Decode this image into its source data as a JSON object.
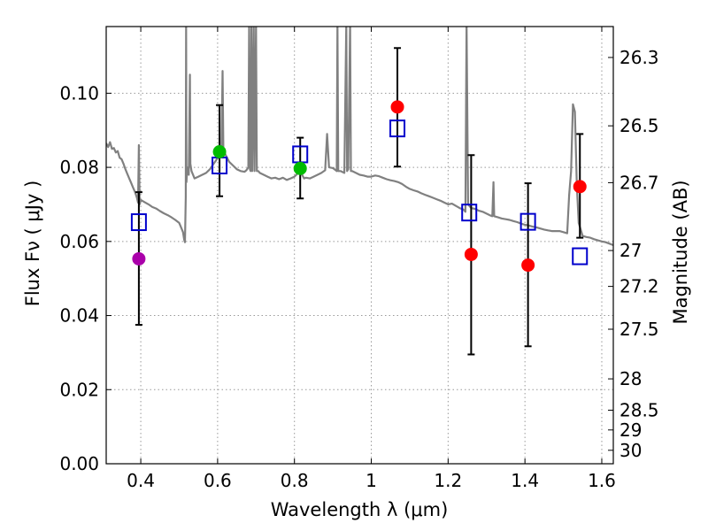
{
  "chart_data": {
    "type": "scatter",
    "xlabel": "Wavelength  λ (μm)",
    "ylabel": "Flux  Fν  ( μJy )",
    "y2label": "Magnitude (AB)",
    "xlim": [
      0.31,
      1.63
    ],
    "ylim": [
      0.0,
      0.118
    ],
    "grid": true,
    "x_ticks": [
      {
        "value": 0.4,
        "label": "0.4"
      },
      {
        "value": 0.6,
        "label": "0.6"
      },
      {
        "value": 0.8,
        "label": "0.8"
      },
      {
        "value": 1.0,
        "label": "1"
      },
      {
        "value": 1.2,
        "label": "1.2"
      },
      {
        "value": 1.4,
        "label": "1.4"
      },
      {
        "value": 1.6,
        "label": "1.6"
      }
    ],
    "y_ticks": [
      {
        "value": 0.0,
        "label": "0.00"
      },
      {
        "value": 0.02,
        "label": "0.02"
      },
      {
        "value": 0.04,
        "label": "0.04"
      },
      {
        "value": 0.06,
        "label": "0.06"
      },
      {
        "value": 0.08,
        "label": "0.08"
      },
      {
        "value": 0.1,
        "label": "0.10"
      }
    ],
    "mag_ticks": [
      {
        "mag": 26.3,
        "label": "26.3"
      },
      {
        "mag": 26.5,
        "label": "26.5"
      },
      {
        "mag": 26.7,
        "label": "26.7"
      },
      {
        "mag": 27.0,
        "label": "27"
      },
      {
        "mag": 27.2,
        "label": "27.2"
      },
      {
        "mag": 27.5,
        "label": "27.5"
      },
      {
        "mag": 28.0,
        "label": "28"
      },
      {
        "mag": 28.5,
        "label": "28.5"
      },
      {
        "mag": 29.0,
        "label": "29"
      },
      {
        "mag": 30.0,
        "label": "30"
      }
    ],
    "observed": [
      {
        "x": 0.395,
        "y": 0.0553,
        "err_low": 0.0375,
        "err_high": 0.0733,
        "color": "#aa00aa"
      },
      {
        "x": 0.605,
        "y": 0.0842,
        "err_low": 0.0722,
        "err_high": 0.0968,
        "color": "#00bb00"
      },
      {
        "x": 0.815,
        "y": 0.0797,
        "err_low": 0.0716,
        "err_high": 0.088,
        "color": "#00bb00"
      },
      {
        "x": 1.068,
        "y": 0.0963,
        "err_low": 0.0802,
        "err_high": 0.1122,
        "color": "#ff0000"
      },
      {
        "x": 1.26,
        "y": 0.0565,
        "err_low": 0.0295,
        "err_high": 0.0833,
        "color": "#ff0000"
      },
      {
        "x": 1.408,
        "y": 0.0536,
        "err_low": 0.0317,
        "err_high": 0.0757,
        "color": "#ff0000"
      },
      {
        "x": 1.543,
        "y": 0.0748,
        "err_low": 0.061,
        "err_high": 0.089,
        "color": "#ff0000"
      }
    ],
    "model_points": [
      {
        "x": 0.395,
        "y": 0.0652
      },
      {
        "x": 0.605,
        "y": 0.0805
      },
      {
        "x": 0.815,
        "y": 0.0835
      },
      {
        "x": 1.068,
        "y": 0.0905
      },
      {
        "x": 1.255,
        "y": 0.0678
      },
      {
        "x": 1.408,
        "y": 0.0653
      },
      {
        "x": 1.543,
        "y": 0.056
      }
    ],
    "template_spectrum": [
      [
        0.31,
        0.0865
      ],
      [
        0.315,
        0.0855
      ],
      [
        0.32,
        0.0868
      ],
      [
        0.325,
        0.085
      ],
      [
        0.33,
        0.0852
      ],
      [
        0.335,
        0.084
      ],
      [
        0.34,
        0.0844
      ],
      [
        0.345,
        0.0826
      ],
      [
        0.35,
        0.0822
      ],
      [
        0.355,
        0.081
      ],
      [
        0.36,
        0.0795
      ],
      [
        0.365,
        0.0782
      ],
      [
        0.37,
        0.077
      ],
      [
        0.375,
        0.0758
      ],
      [
        0.38,
        0.0745
      ],
      [
        0.385,
        0.0733
      ],
      [
        0.39,
        0.0718
      ],
      [
        0.393,
        0.0705
      ],
      [
        0.395,
        0.086
      ],
      [
        0.397,
        0.07
      ],
      [
        0.4,
        0.0712
      ],
      [
        0.41,
        0.0706
      ],
      [
        0.42,
        0.07
      ],
      [
        0.43,
        0.0693
      ],
      [
        0.44,
        0.0689
      ],
      [
        0.45,
        0.0682
      ],
      [
        0.46,
        0.0676
      ],
      [
        0.47,
        0.0671
      ],
      [
        0.48,
        0.0665
      ],
      [
        0.49,
        0.0658
      ],
      [
        0.5,
        0.065
      ],
      [
        0.505,
        0.0638
      ],
      [
        0.51,
        0.0625
      ],
      [
        0.513,
        0.0605
      ],
      [
        0.515,
        0.0598
      ],
      [
        0.517,
        0.072
      ],
      [
        0.518,
        0.118
      ],
      [
        0.519,
        0.076
      ],
      [
        0.521,
        0.08
      ],
      [
        0.525,
        0.078
      ],
      [
        0.528,
        0.105
      ],
      [
        0.529,
        0.081
      ],
      [
        0.532,
        0.079
      ],
      [
        0.54,
        0.077
      ],
      [
        0.55,
        0.0775
      ],
      [
        0.56,
        0.078
      ],
      [
        0.57,
        0.0785
      ],
      [
        0.58,
        0.0795
      ],
      [
        0.59,
        0.081
      ],
      [
        0.6,
        0.0825
      ],
      [
        0.605,
        0.083
      ],
      [
        0.61,
        0.084
      ],
      [
        0.613,
        0.106
      ],
      [
        0.615,
        0.0845
      ],
      [
        0.62,
        0.0835
      ],
      [
        0.63,
        0.0815
      ],
      [
        0.64,
        0.0805
      ],
      [
        0.65,
        0.0795
      ],
      [
        0.66,
        0.079
      ],
      [
        0.67,
        0.0788
      ],
      [
        0.675,
        0.0792
      ],
      [
        0.68,
        0.08
      ],
      [
        0.682,
        0.118
      ],
      [
        0.684,
        0.0795
      ],
      [
        0.686,
        0.079
      ],
      [
        0.688,
        0.118
      ],
      [
        0.69,
        0.079
      ],
      [
        0.694,
        0.118
      ],
      [
        0.696,
        0.079
      ],
      [
        0.7,
        0.118
      ],
      [
        0.702,
        0.079
      ],
      [
        0.706,
        0.079
      ],
      [
        0.71,
        0.0785
      ],
      [
        0.72,
        0.078
      ],
      [
        0.73,
        0.0775
      ],
      [
        0.74,
        0.077
      ],
      [
        0.75,
        0.0772
      ],
      [
        0.76,
        0.0768
      ],
      [
        0.77,
        0.0772
      ],
      [
        0.78,
        0.0766
      ],
      [
        0.79,
        0.077
      ],
      [
        0.8,
        0.0775
      ],
      [
        0.81,
        0.0785
      ],
      [
        0.815,
        0.079
      ],
      [
        0.82,
        0.078
      ],
      [
        0.825,
        0.077
      ],
      [
        0.83,
        0.0772
      ],
      [
        0.84,
        0.077
      ],
      [
        0.85,
        0.0775
      ],
      [
        0.86,
        0.078
      ],
      [
        0.87,
        0.0785
      ],
      [
        0.88,
        0.0792
      ],
      [
        0.885,
        0.089
      ],
      [
        0.89,
        0.08
      ],
      [
        0.9,
        0.0798
      ],
      [
        0.91,
        0.079
      ],
      [
        0.912,
        0.119
      ],
      [
        0.914,
        0.079
      ],
      [
        0.92,
        0.079
      ],
      [
        0.93,
        0.0785
      ],
      [
        0.935,
        0.119
      ],
      [
        0.937,
        0.079
      ],
      [
        0.94,
        0.0795
      ],
      [
        0.945,
        0.119
      ],
      [
        0.947,
        0.079
      ],
      [
        0.95,
        0.079
      ],
      [
        0.96,
        0.0785
      ],
      [
        0.97,
        0.078
      ],
      [
        0.98,
        0.0778
      ],
      [
        0.99,
        0.0775
      ],
      [
        1.0,
        0.0775
      ],
      [
        1.01,
        0.0778
      ],
      [
        1.02,
        0.0776
      ],
      [
        1.03,
        0.0772
      ],
      [
        1.04,
        0.0768
      ],
      [
        1.05,
        0.0765
      ],
      [
        1.06,
        0.0763
      ],
      [
        1.07,
        0.076
      ],
      [
        1.08,
        0.0755
      ],
      [
        1.09,
        0.0748
      ],
      [
        1.1,
        0.0742
      ],
      [
        1.11,
        0.0738
      ],
      [
        1.12,
        0.0735
      ],
      [
        1.13,
        0.073
      ],
      [
        1.14,
        0.0726
      ],
      [
        1.15,
        0.0722
      ],
      [
        1.16,
        0.0718
      ],
      [
        1.17,
        0.0714
      ],
      [
        1.18,
        0.071
      ],
      [
        1.19,
        0.0705
      ],
      [
        1.2,
        0.07
      ],
      [
        1.21,
        0.0702
      ],
      [
        1.22,
        0.0696
      ],
      [
        1.23,
        0.069
      ],
      [
        1.24,
        0.0686
      ],
      [
        1.245,
        0.068
      ],
      [
        1.248,
        0.119
      ],
      [
        1.252,
        0.07
      ],
      [
        1.26,
        0.069
      ],
      [
        1.27,
        0.0688
      ],
      [
        1.28,
        0.0683
      ],
      [
        1.29,
        0.068
      ],
      [
        1.3,
        0.0675
      ],
      [
        1.31,
        0.067
      ],
      [
        1.315,
        0.0668
      ],
      [
        1.318,
        0.076
      ],
      [
        1.32,
        0.0668
      ],
      [
        1.33,
        0.0665
      ],
      [
        1.34,
        0.0662
      ],
      [
        1.35,
        0.066
      ],
      [
        1.36,
        0.0658
      ],
      [
        1.37,
        0.0655
      ],
      [
        1.38,
        0.0652
      ],
      [
        1.39,
        0.0648
      ],
      [
        1.4,
        0.0645
      ],
      [
        1.41,
        0.0643
      ],
      [
        1.42,
        0.064
      ],
      [
        1.43,
        0.0638
      ],
      [
        1.44,
        0.0635
      ],
      [
        1.45,
        0.0632
      ],
      [
        1.46,
        0.063
      ],
      [
        1.47,
        0.0628
      ],
      [
        1.48,
        0.0628
      ],
      [
        1.49,
        0.0628
      ],
      [
        1.5,
        0.0625
      ],
      [
        1.51,
        0.0622
      ],
      [
        1.515,
        0.0725
      ],
      [
        1.52,
        0.079
      ],
      [
        1.525,
        0.097
      ],
      [
        1.53,
        0.095
      ],
      [
        1.535,
        0.075
      ],
      [
        1.54,
        0.065
      ],
      [
        1.55,
        0.0615
      ],
      [
        1.56,
        0.0612
      ],
      [
        1.57,
        0.061
      ],
      [
        1.58,
        0.0606
      ],
      [
        1.59,
        0.0603
      ],
      [
        1.6,
        0.06
      ],
      [
        1.61,
        0.0598
      ],
      [
        1.62,
        0.0594
      ],
      [
        1.63,
        0.059
      ]
    ],
    "colors": {
      "model_box": "#0000cc",
      "spectrum": "#808080",
      "errorbar": "#000000",
      "grid": "#999999"
    }
  }
}
